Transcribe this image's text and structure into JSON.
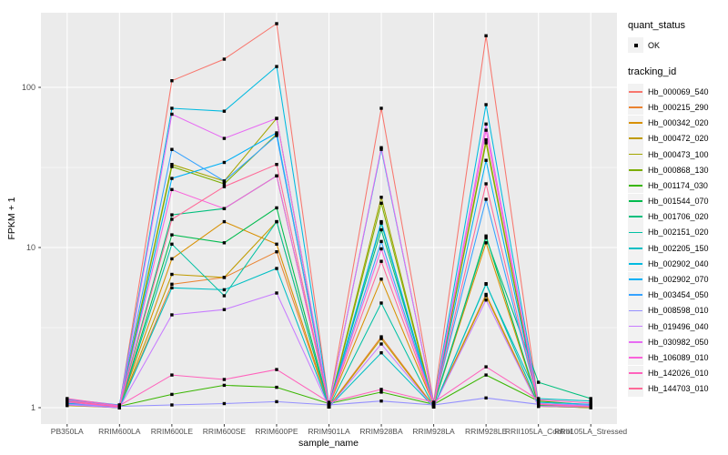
{
  "legend": {
    "quant_status_title": "quant_status",
    "ok_label": "OK",
    "tracking_id_title": "tracking_id"
  },
  "style": {
    "panel_bg": "#EBEBEB",
    "grid_color": "#FFFFFF",
    "axis_text_color": "#4D4D4D",
    "tick_color": "#333333",
    "point_color": "#000000",
    "legend_key_bg": "#F2F2F2"
  },
  "chart_data": {
    "type": "line",
    "title": "",
    "xlabel": "sample_name",
    "ylabel": "FPKM + 1",
    "y_scale": "log10",
    "ylim": [
      0.93,
      292
    ],
    "y_tick_values": [
      1,
      10,
      100
    ],
    "y_tick_labels": [
      "1",
      "10",
      "100"
    ],
    "y_minor_values": [
      3.162,
      31.62
    ],
    "grid": "on",
    "legend_position": "right",
    "point_marker": "filled-square",
    "categories": [
      "PB350LA",
      "RRIM600LA",
      "RRIM600LE",
      "RRIM600SE",
      "RRIM600PE",
      "RRIM901LA",
      "RRIM928BA",
      "RRIM928LA",
      "RRIM928LE",
      "RRII105LA_Control",
      "RRII105LA_Stressed"
    ],
    "series": [
      {
        "id": "Hb_000069_540",
        "color": "#F8766D",
        "values": [
          1.12,
          1.02,
          110,
          150,
          250,
          1.05,
          74,
          1.08,
          210,
          1.06,
          1.03
        ]
      },
      {
        "id": "Hb_000215_290",
        "color": "#EA8331",
        "values": [
          1.05,
          1.0,
          5.9,
          6.5,
          9.4,
          1.02,
          2.77,
          1.02,
          5.1,
          1.03,
          1.01
        ]
      },
      {
        "id": "Hb_000342_020",
        "color": "#D89000",
        "values": [
          1.08,
          1.01,
          8.5,
          14.5,
          10.5,
          1.03,
          6.35,
          1.04,
          10.7,
          1.04,
          1.02
        ]
      },
      {
        "id": "Hb_000472_020",
        "color": "#C09B00",
        "values": [
          1.03,
          1.0,
          6.8,
          6.5,
          14.5,
          1.01,
          2.7,
          1.01,
          5.0,
          1.02,
          1.0
        ]
      },
      {
        "id": "Hb_000473_100",
        "color": "#A3A500",
        "values": [
          1.06,
          1.01,
          33,
          26,
          64,
          1.02,
          20.6,
          1.03,
          47,
          1.03,
          1.01
        ]
      },
      {
        "id": "Hb_000868_130",
        "color": "#7CAE00",
        "values": [
          1.04,
          1.0,
          32,
          25,
          51,
          1.01,
          18.9,
          1.02,
          45,
          1.02,
          1.0
        ]
      },
      {
        "id": "Hb_001174_030",
        "color": "#39B600",
        "values": [
          1.08,
          1.02,
          1.21,
          1.38,
          1.34,
          1.06,
          1.25,
          1.05,
          1.6,
          1.1,
          1.04
        ]
      },
      {
        "id": "Hb_001544_070",
        "color": "#00BB4E",
        "values": [
          1.06,
          1.0,
          12,
          10.7,
          17.7,
          1.02,
          14.2,
          1.03,
          11.8,
          1.05,
          1.02
        ]
      },
      {
        "id": "Hb_001706_020",
        "color": "#00BF7D",
        "values": [
          1.11,
          1.02,
          16,
          17.5,
          28,
          1.04,
          12.9,
          1.05,
          11.5,
          1.44,
          1.14
        ]
      },
      {
        "id": "Hb_002151_020",
        "color": "#00C1A3",
        "values": [
          1.07,
          1.0,
          10.5,
          5.0,
          14.5,
          1.01,
          4.5,
          1.01,
          5.95,
          1.04,
          1.02
        ]
      },
      {
        "id": "Hb_002205_150",
        "color": "#00BFC4",
        "values": [
          1.05,
          1.0,
          5.6,
          5.45,
          7.4,
          1.01,
          2.2,
          1.01,
          5.9,
          1.14,
          1.1
        ]
      },
      {
        "id": "Hb_002902_040",
        "color": "#00BAE0",
        "values": [
          1.09,
          1.04,
          74,
          71,
          135,
          1.05,
          41,
          1.06,
          78,
          1.08,
          1.05
        ]
      },
      {
        "id": "Hb_002902_070",
        "color": "#00B0F6",
        "values": [
          1.06,
          1.01,
          27,
          34,
          52,
          1.02,
          14.5,
          1.03,
          35,
          1.05,
          1.02
        ]
      },
      {
        "id": "Hb_003454_050",
        "color": "#35A2FF",
        "values": [
          1.13,
          1.04,
          41,
          26,
          50,
          1.04,
          10.9,
          1.05,
          20,
          1.06,
          1.03
        ]
      },
      {
        "id": "Hb_008598_010",
        "color": "#9590FF",
        "values": [
          1.05,
          1.02,
          1.04,
          1.06,
          1.09,
          1.04,
          1.1,
          1.04,
          1.15,
          1.05,
          1.04
        ]
      },
      {
        "id": "Hb_019496_040",
        "color": "#C77CFF",
        "values": [
          1.04,
          1.0,
          3.8,
          4.1,
          5.2,
          1.01,
          2.5,
          1.01,
          4.7,
          1.02,
          1.01
        ]
      },
      {
        "id": "Hb_030982_050",
        "color": "#E76BF3",
        "values": [
          1.11,
          1.02,
          68,
          48,
          64,
          1.04,
          42,
          1.05,
          59,
          1.06,
          1.02
        ]
      },
      {
        "id": "Hb_106089_010",
        "color": "#FA62DB",
        "values": [
          1.08,
          1.01,
          23,
          17.5,
          28,
          1.03,
          9.8,
          1.04,
          54,
          1.05,
          1.01
        ]
      },
      {
        "id": "Hb_142026_010",
        "color": "#FF62BC",
        "values": [
          1.14,
          1.03,
          1.6,
          1.5,
          1.73,
          1.08,
          1.3,
          1.08,
          1.8,
          1.12,
          1.07
        ]
      },
      {
        "id": "Hb_144703_010",
        "color": "#FF6A98",
        "values": [
          1.1,
          1.01,
          15,
          24,
          33,
          1.03,
          8.2,
          1.04,
          25,
          1.05,
          1.01
        ]
      }
    ]
  }
}
